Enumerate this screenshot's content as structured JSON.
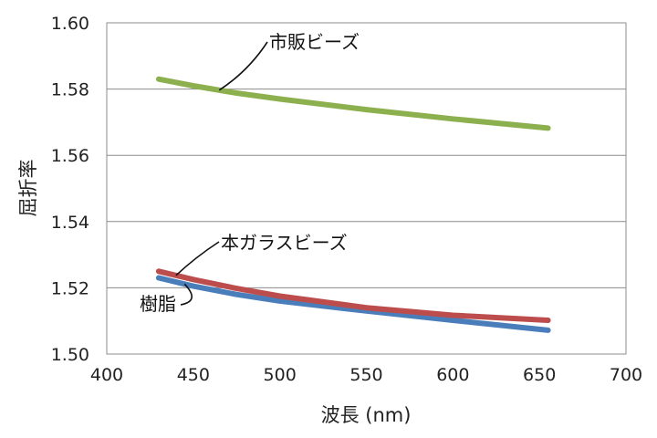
{
  "chart_data": {
    "type": "line",
    "title": "",
    "xlabel": "波長 (nm)",
    "ylabel": "屈折率",
    "xlim": [
      400,
      700
    ],
    "ylim": [
      1.5,
      1.6
    ],
    "xticks": [
      400,
      450,
      500,
      550,
      600,
      650,
      700
    ],
    "xtick_labels": [
      "400",
      "450",
      "500",
      "550",
      "600",
      "650",
      "700"
    ],
    "yticks": [
      1.5,
      1.52,
      1.54,
      1.56,
      1.58,
      1.6
    ],
    "ytick_labels": [
      "1.50",
      "1.52",
      "1.54",
      "1.56",
      "1.58",
      "1.60"
    ],
    "grid": "horizontal",
    "legend": "none",
    "series": [
      {
        "name": "市販ビーズ",
        "color": "#8db04f",
        "x": [
          430,
          450,
          475,
          500,
          550,
          600,
          655
        ],
        "y": [
          1.583,
          1.581,
          1.5788,
          1.577,
          1.5738,
          1.571,
          1.5682
        ]
      },
      {
        "name": "本ガラスビーズ",
        "color": "#bc4d4c",
        "x": [
          430,
          450,
          475,
          500,
          550,
          600,
          655
        ],
        "y": [
          1.525,
          1.5225,
          1.5198,
          1.5175,
          1.514,
          1.5117,
          1.5102
        ]
      },
      {
        "name": "樹脂",
        "color": "#4a7ebb",
        "x": [
          430,
          450,
          475,
          500,
          550,
          600,
          655
        ],
        "y": [
          1.523,
          1.5205,
          1.518,
          1.516,
          1.513,
          1.5102,
          1.5072
        ]
      }
    ],
    "annotations": [
      {
        "text": "市販ビーズ",
        "series": 0,
        "x": 465
      },
      {
        "text": "本ガラスビーズ",
        "series": 1,
        "x": 440
      },
      {
        "text": "樹脂",
        "series": 2,
        "x": 445
      }
    ]
  }
}
